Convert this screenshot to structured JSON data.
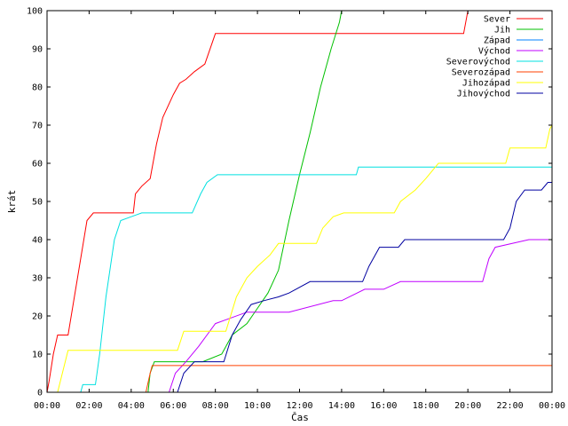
{
  "chart_data": {
    "type": "line",
    "title": "",
    "xlabel": "Čas",
    "ylabel": "krát",
    "xlim": [
      "00:00",
      "24:00"
    ],
    "ylim": [
      0,
      100
    ],
    "x_ticks": [
      "00:00",
      "02:00",
      "04:00",
      "06:00",
      "08:00",
      "10:00",
      "12:00",
      "14:00",
      "16:00",
      "18:00",
      "20:00",
      "22:00",
      "00:00"
    ],
    "y_ticks": [
      0,
      10,
      20,
      30,
      40,
      50,
      60,
      70,
      80,
      90,
      100
    ],
    "grid": false,
    "legend_position": "top-right",
    "x_unit": "hours",
    "series": [
      {
        "name": "Sever",
        "color": "#ff0000",
        "points": [
          [
            0,
            0
          ],
          [
            0.1,
            3
          ],
          [
            0.3,
            10
          ],
          [
            0.5,
            15
          ],
          [
            1.0,
            15
          ],
          [
            1.3,
            25
          ],
          [
            1.6,
            35
          ],
          [
            1.9,
            45
          ],
          [
            2.2,
            47
          ],
          [
            4.1,
            47
          ],
          [
            4.2,
            52
          ],
          [
            4.5,
            54
          ],
          [
            4.9,
            56
          ],
          [
            5.2,
            65
          ],
          [
            5.5,
            72
          ],
          [
            6.0,
            78
          ],
          [
            6.3,
            81
          ],
          [
            6.6,
            82
          ],
          [
            7.0,
            84
          ],
          [
            7.5,
            86
          ],
          [
            8.0,
            94
          ],
          [
            8.3,
            94
          ],
          [
            19.8,
            94
          ],
          [
            20.0,
            100
          ],
          [
            24,
            100
          ]
        ]
      },
      {
        "name": "Jih",
        "color": "#00c000",
        "points": [
          [
            4.8,
            0
          ],
          [
            4.9,
            5
          ],
          [
            5.1,
            8
          ],
          [
            7.4,
            8
          ],
          [
            8.3,
            10
          ],
          [
            8.8,
            15
          ],
          [
            9.5,
            18
          ],
          [
            10.0,
            22
          ],
          [
            10.5,
            26
          ],
          [
            11.0,
            32
          ],
          [
            11.5,
            45
          ],
          [
            12.0,
            57
          ],
          [
            12.5,
            68
          ],
          [
            13.0,
            80
          ],
          [
            13.5,
            90
          ],
          [
            13.9,
            97
          ],
          [
            14.0,
            100
          ]
        ]
      },
      {
        "name": "Západ",
        "color": "#0080ff",
        "points": []
      },
      {
        "name": "Východ",
        "color": "#c000ff",
        "points": [
          [
            5.8,
            0
          ],
          [
            6.1,
            5
          ],
          [
            6.6,
            8
          ],
          [
            7.2,
            12
          ],
          [
            7.6,
            15
          ],
          [
            8.0,
            18
          ],
          [
            9.5,
            21
          ],
          [
            11.5,
            21
          ],
          [
            13.6,
            24
          ],
          [
            14.0,
            24
          ],
          [
            15.1,
            27
          ],
          [
            16.0,
            27
          ],
          [
            16.8,
            29
          ],
          [
            20.7,
            29
          ],
          [
            21.0,
            35
          ],
          [
            21.3,
            38
          ],
          [
            22.9,
            40
          ],
          [
            24,
            40
          ]
        ]
      },
      {
        "name": "Severovýchod",
        "color": "#00e0e0",
        "points": [
          [
            1.6,
            0
          ],
          [
            1.7,
            2
          ],
          [
            2.3,
            2
          ],
          [
            2.5,
            10
          ],
          [
            2.8,
            25
          ],
          [
            3.2,
            40
          ],
          [
            3.5,
            45
          ],
          [
            4.0,
            46
          ],
          [
            4.5,
            47
          ],
          [
            6.9,
            47
          ],
          [
            7.3,
            52
          ],
          [
            7.6,
            55
          ],
          [
            8.1,
            57
          ],
          [
            14.7,
            57
          ],
          [
            14.8,
            59
          ],
          [
            24,
            59
          ]
        ]
      },
      {
        "name": "Severozápad",
        "color": "#ff4000",
        "points": [
          [
            4.7,
            0
          ],
          [
            4.9,
            5
          ],
          [
            5.0,
            7
          ],
          [
            24,
            7
          ]
        ]
      },
      {
        "name": "Jihozápad",
        "color": "#ffff00",
        "points": [
          [
            0.5,
            0
          ],
          [
            1.0,
            11
          ],
          [
            6.2,
            11
          ],
          [
            6.5,
            16
          ],
          [
            7.0,
            16
          ],
          [
            8.5,
            16
          ],
          [
            9.0,
            25
          ],
          [
            9.5,
            30
          ],
          [
            10.0,
            33
          ],
          [
            10.6,
            36
          ],
          [
            11.0,
            39
          ],
          [
            12.8,
            39
          ],
          [
            13.1,
            43
          ],
          [
            13.6,
            46
          ],
          [
            14.1,
            47
          ],
          [
            16.5,
            47
          ],
          [
            16.8,
            50
          ],
          [
            17.5,
            53
          ],
          [
            18.0,
            56
          ],
          [
            18.6,
            60
          ],
          [
            21.8,
            60
          ],
          [
            22.0,
            64
          ],
          [
            23.7,
            64
          ],
          [
            23.9,
            69
          ],
          [
            24,
            70
          ]
        ]
      },
      {
        "name": "Jihovýchod",
        "color": "#0000a0",
        "points": [
          [
            6.2,
            0
          ],
          [
            6.5,
            5
          ],
          [
            7.0,
            8
          ],
          [
            8.4,
            8
          ],
          [
            8.8,
            15
          ],
          [
            9.2,
            19
          ],
          [
            9.7,
            23
          ],
          [
            10.3,
            24
          ],
          [
            11.0,
            25
          ],
          [
            11.5,
            26
          ],
          [
            12.5,
            29
          ],
          [
            15.0,
            29
          ],
          [
            15.3,
            33
          ],
          [
            15.8,
            38
          ],
          [
            16.7,
            38
          ],
          [
            17.0,
            40
          ],
          [
            21.7,
            40
          ],
          [
            22.0,
            43
          ],
          [
            22.3,
            50
          ],
          [
            22.7,
            53
          ],
          [
            23.5,
            53
          ],
          [
            23.8,
            55
          ],
          [
            24,
            55
          ]
        ]
      }
    ]
  }
}
